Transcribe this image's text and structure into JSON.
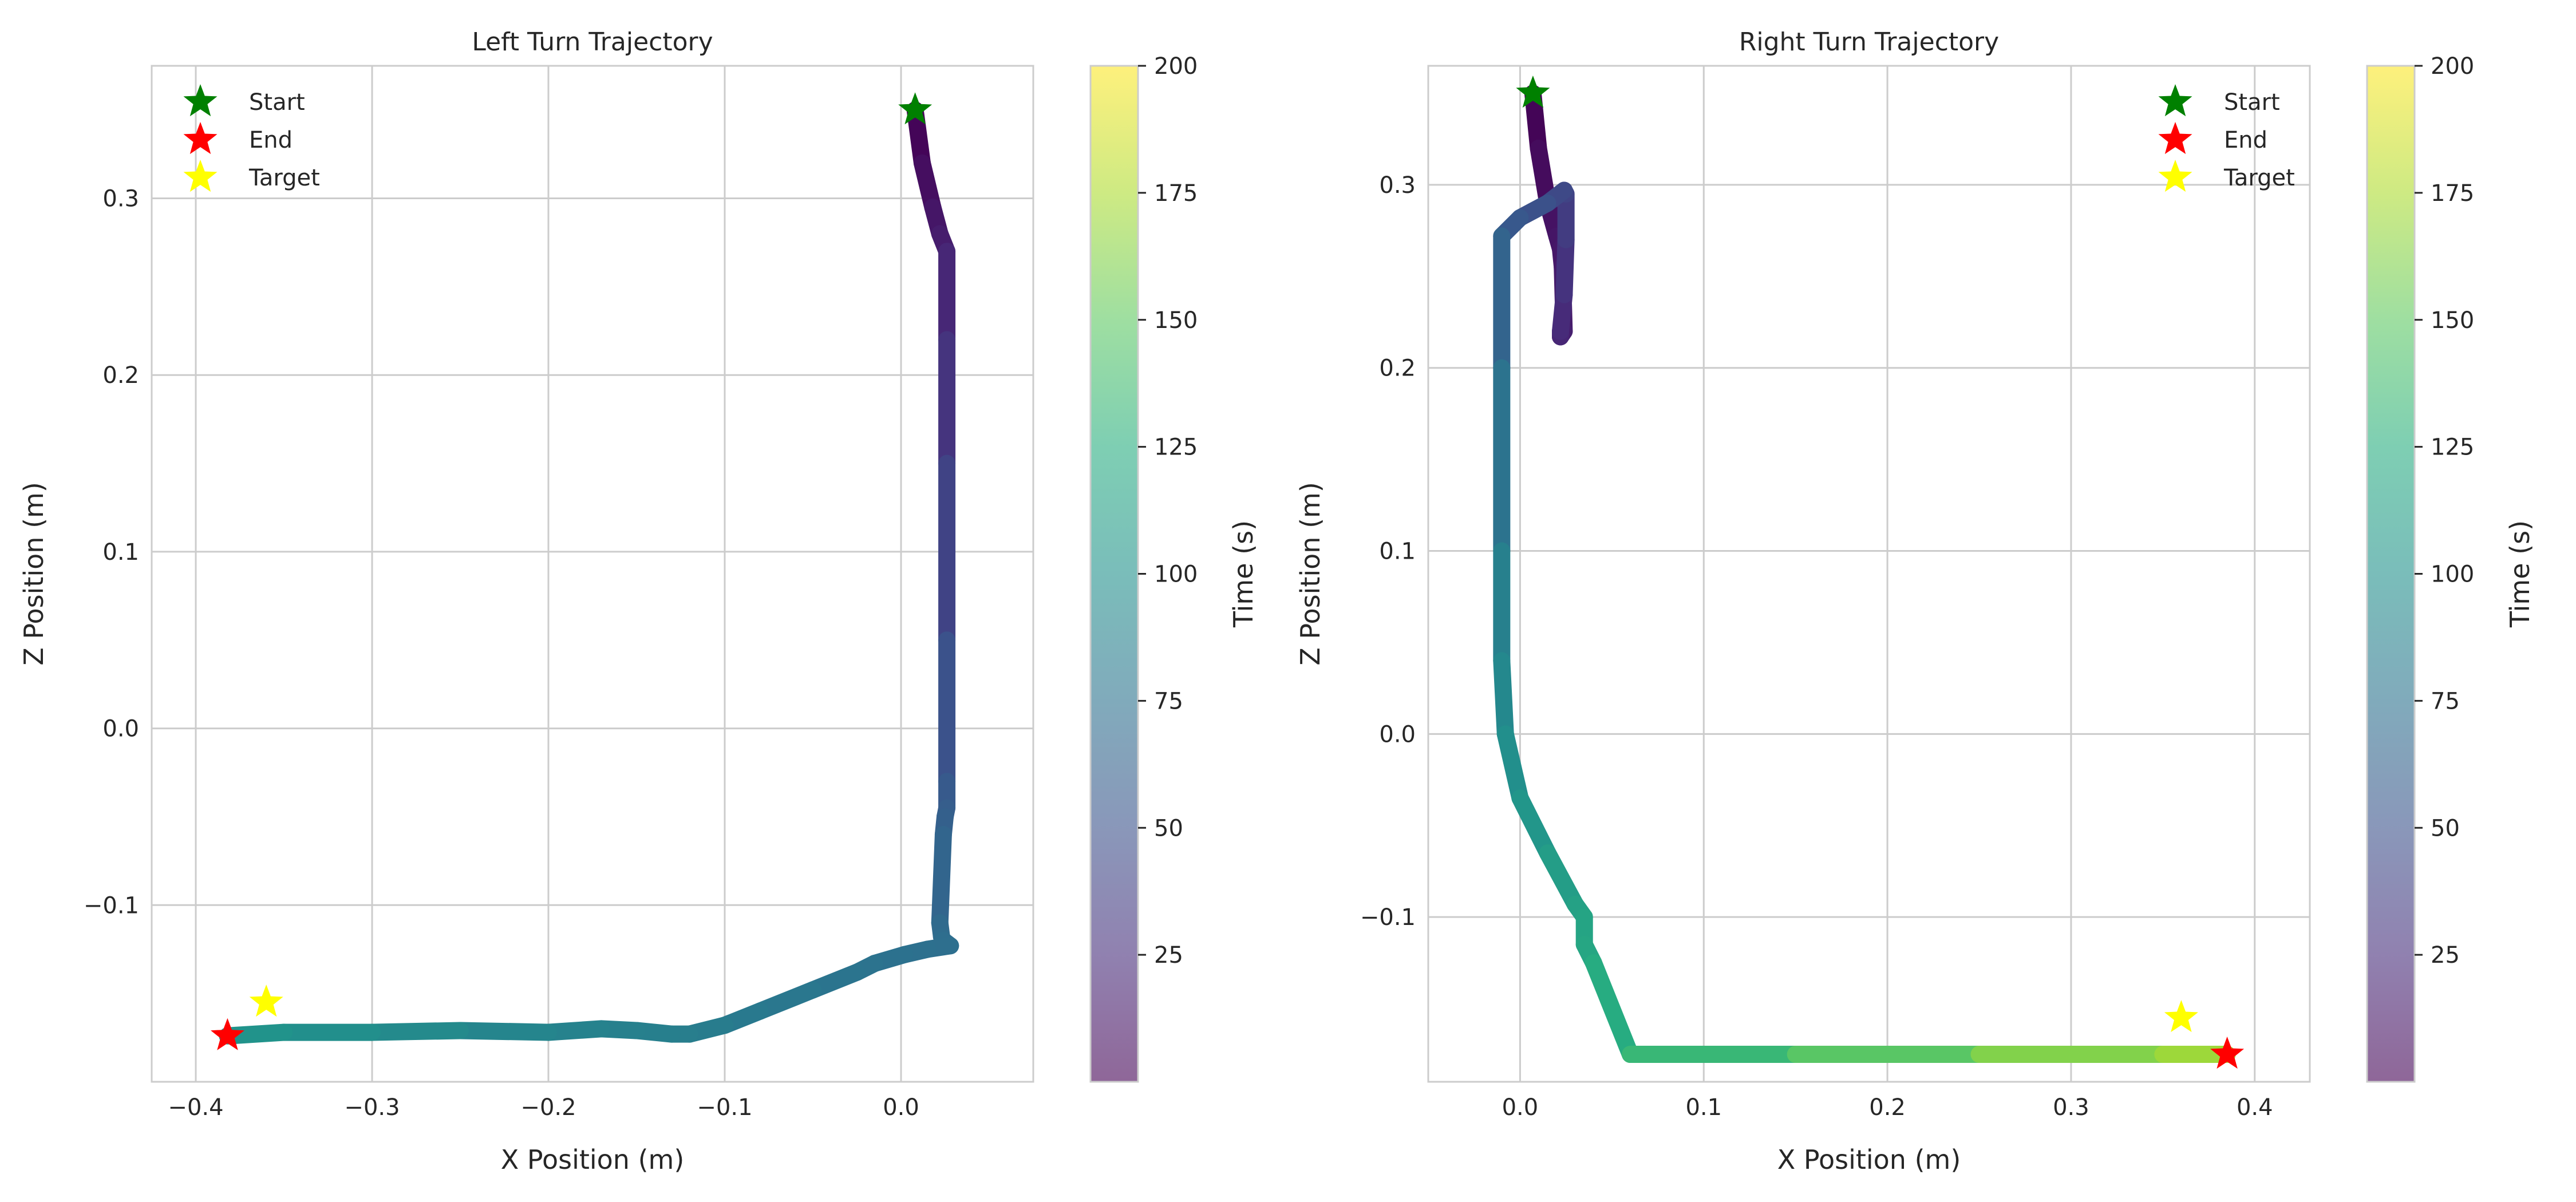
{
  "chart_data": [
    {
      "type": "line",
      "title": "Left Turn Trajectory",
      "xlabel": "X Position (m)",
      "ylabel": "Z Position (m)",
      "xlim": [
        -0.425,
        0.075
      ],
      "ylim": [
        -0.2,
        0.375
      ],
      "xticks": [
        -0.4,
        -0.3,
        -0.2,
        -0.1,
        0.0
      ],
      "xtick_labels": [
        "−0.4",
        "−0.3",
        "−0.2",
        "−0.1",
        "0.0"
      ],
      "yticks": [
        -0.1,
        0.0,
        0.1,
        0.2,
        0.3
      ],
      "ytick_labels": [
        "−0.1",
        "0.0",
        "0.1",
        "0.2",
        "0.3"
      ],
      "grid": true,
      "legend_position": "top-left",
      "legend": [
        "Start",
        "End",
        "Target"
      ],
      "series": [
        {
          "name": "trajectory",
          "color_by": "time",
          "x": [
            0.008,
            0.012,
            0.018,
            0.022,
            0.026,
            0.026,
            0.026,
            0.026,
            0.026,
            0.026,
            0.025,
            0.024,
            0.022,
            0.023,
            0.024,
            0.028,
            0.015,
            0.002,
            -0.015,
            -0.025,
            -0.05,
            -0.08,
            -0.1,
            -0.12,
            -0.13,
            -0.15,
            -0.17,
            -0.2,
            -0.25,
            -0.3,
            -0.35,
            -0.382
          ],
          "z": [
            0.35,
            0.32,
            0.295,
            0.28,
            0.27,
            0.22,
            0.15,
            0.05,
            -0.03,
            -0.045,
            -0.05,
            -0.06,
            -0.11,
            -0.118,
            -0.12,
            -0.123,
            -0.125,
            -0.128,
            -0.133,
            -0.138,
            -0.148,
            -0.16,
            -0.168,
            -0.173,
            -0.173,
            -0.171,
            -0.17,
            -0.172,
            -0.171,
            -0.172,
            -0.172,
            -0.174
          ],
          "t": [
            0,
            5,
            10,
            14,
            18,
            25,
            35,
            45,
            55,
            58,
            60,
            62,
            68,
            70,
            71,
            72,
            73,
            74,
            75,
            76,
            78,
            80,
            82,
            84,
            85,
            86,
            87,
            89,
            92,
            96,
            100,
            103
          ]
        }
      ],
      "markers": [
        {
          "name": "Start",
          "x": 0.008,
          "z": 0.35,
          "color": "#008000"
        },
        {
          "name": "End",
          "x": -0.382,
          "z": -0.174,
          "color": "#ff0000"
        },
        {
          "name": "Target",
          "x": -0.36,
          "z": -0.155,
          "color": "#ffff00"
        }
      ],
      "colorbar": {
        "label": "Time (s)",
        "range": [
          0,
          200
        ],
        "ticks": [
          25,
          50,
          75,
          100,
          125,
          150,
          175,
          200
        ],
        "tick_labels": [
          "25",
          "50",
          "75",
          "100",
          "125",
          "150",
          "175",
          "200"
        ],
        "colormap": "viridis",
        "alpha": 0.6
      }
    },
    {
      "type": "line",
      "title": "Right Turn Trajectory",
      "xlabel": "X Position (m)",
      "ylabel": "Z Position (m)",
      "xlim": [
        -0.05,
        0.43
      ],
      "ylim": [
        -0.19,
        0.365
      ],
      "xticks": [
        0.0,
        0.1,
        0.2,
        0.3,
        0.4
      ],
      "xtick_labels": [
        "0.0",
        "0.1",
        "0.2",
        "0.3",
        "0.4"
      ],
      "yticks": [
        -0.1,
        0.0,
        0.1,
        0.2,
        0.3
      ],
      "ytick_labels": [
        "−0.1",
        "0.0",
        "0.1",
        "0.2",
        "0.3"
      ],
      "grid": true,
      "legend_position": "top-right",
      "legend": [
        "Start",
        "End",
        "Target"
      ],
      "series": [
        {
          "name": "trajectory",
          "color_by": "time",
          "x": [
            0.007,
            0.01,
            0.015,
            0.02,
            0.022,
            0.023,
            0.024,
            0.022,
            0.022,
            0.022,
            0.024,
            0.025,
            0.025,
            0.024,
            0.015,
            0.0,
            -0.01,
            -0.01,
            -0.01,
            -0.01,
            -0.008,
            0.0,
            0.015,
            0.03,
            0.035,
            0.035,
            0.04,
            0.06,
            0.15,
            0.25,
            0.35,
            0.385
          ],
          "z": [
            0.35,
            0.32,
            0.29,
            0.272,
            0.265,
            0.255,
            0.22,
            0.217,
            0.217,
            0.22,
            0.24,
            0.27,
            0.295,
            0.297,
            0.29,
            0.282,
            0.272,
            0.2,
            0.1,
            0.04,
            0.0,
            -0.035,
            -0.065,
            -0.093,
            -0.1,
            -0.115,
            -0.125,
            -0.175,
            -0.175,
            -0.175,
            -0.175,
            -0.175
          ],
          "t": [
            0,
            4,
            8,
            11,
            12,
            13,
            16,
            18,
            20,
            22,
            26,
            32,
            38,
            42,
            46,
            52,
            58,
            70,
            82,
            90,
            95,
            101,
            107,
            113,
            115,
            117,
            120,
            126,
            140,
            155,
            168,
            172
          ]
        }
      ],
      "markers": [
        {
          "name": "Start",
          "x": 0.007,
          "z": 0.35,
          "color": "#008000"
        },
        {
          "name": "End",
          "x": 0.385,
          "z": -0.175,
          "color": "#ff0000"
        },
        {
          "name": "Target",
          "x": 0.36,
          "z": -0.155,
          "color": "#ffff00"
        }
      ],
      "colorbar": {
        "label": "Time (s)",
        "range": [
          0,
          200
        ],
        "ticks": [
          25,
          50,
          75,
          100,
          125,
          150,
          175,
          200
        ],
        "tick_labels": [
          "25",
          "50",
          "75",
          "100",
          "125",
          "150",
          "175",
          "200"
        ],
        "colormap": "viridis",
        "alpha": 0.6
      }
    }
  ]
}
